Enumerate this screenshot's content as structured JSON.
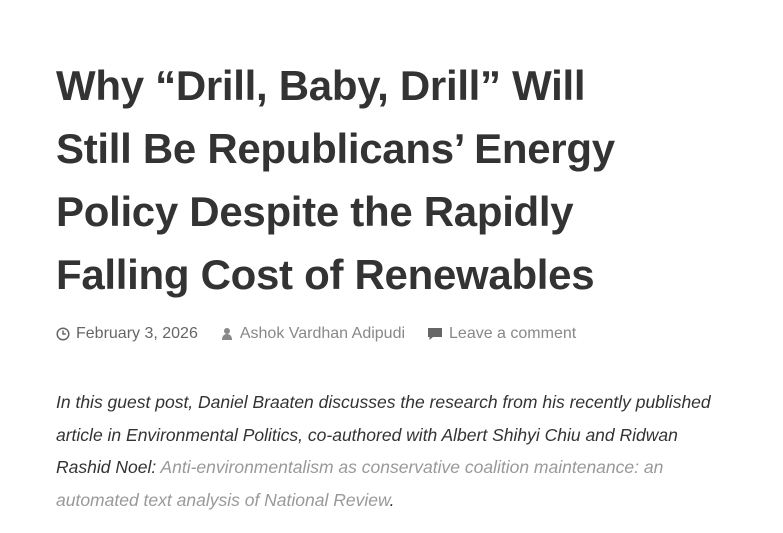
{
  "article": {
    "title_lines": [
      "Why “Drill, Baby, Drill” Will",
      "Still Be Republicans’ Energy",
      "Policy Despite the Rapidly",
      "Falling Cost of Renewables"
    ],
    "meta": {
      "date": "February 3, 2026",
      "author": "Ashok Vardhan Adipudi",
      "comments": "Leave a comment"
    },
    "intro": {
      "text": "In this guest post, Daniel Braaten discusses the research from his recently published article in Environmental Politics, co-authored with Albert Shihyi Chiu and Ridwan Rashid Noel:",
      "link": "Anti-environmentalism as conservative coalition maintenance: an automated text analysis of National Review",
      "end": "."
    }
  }
}
